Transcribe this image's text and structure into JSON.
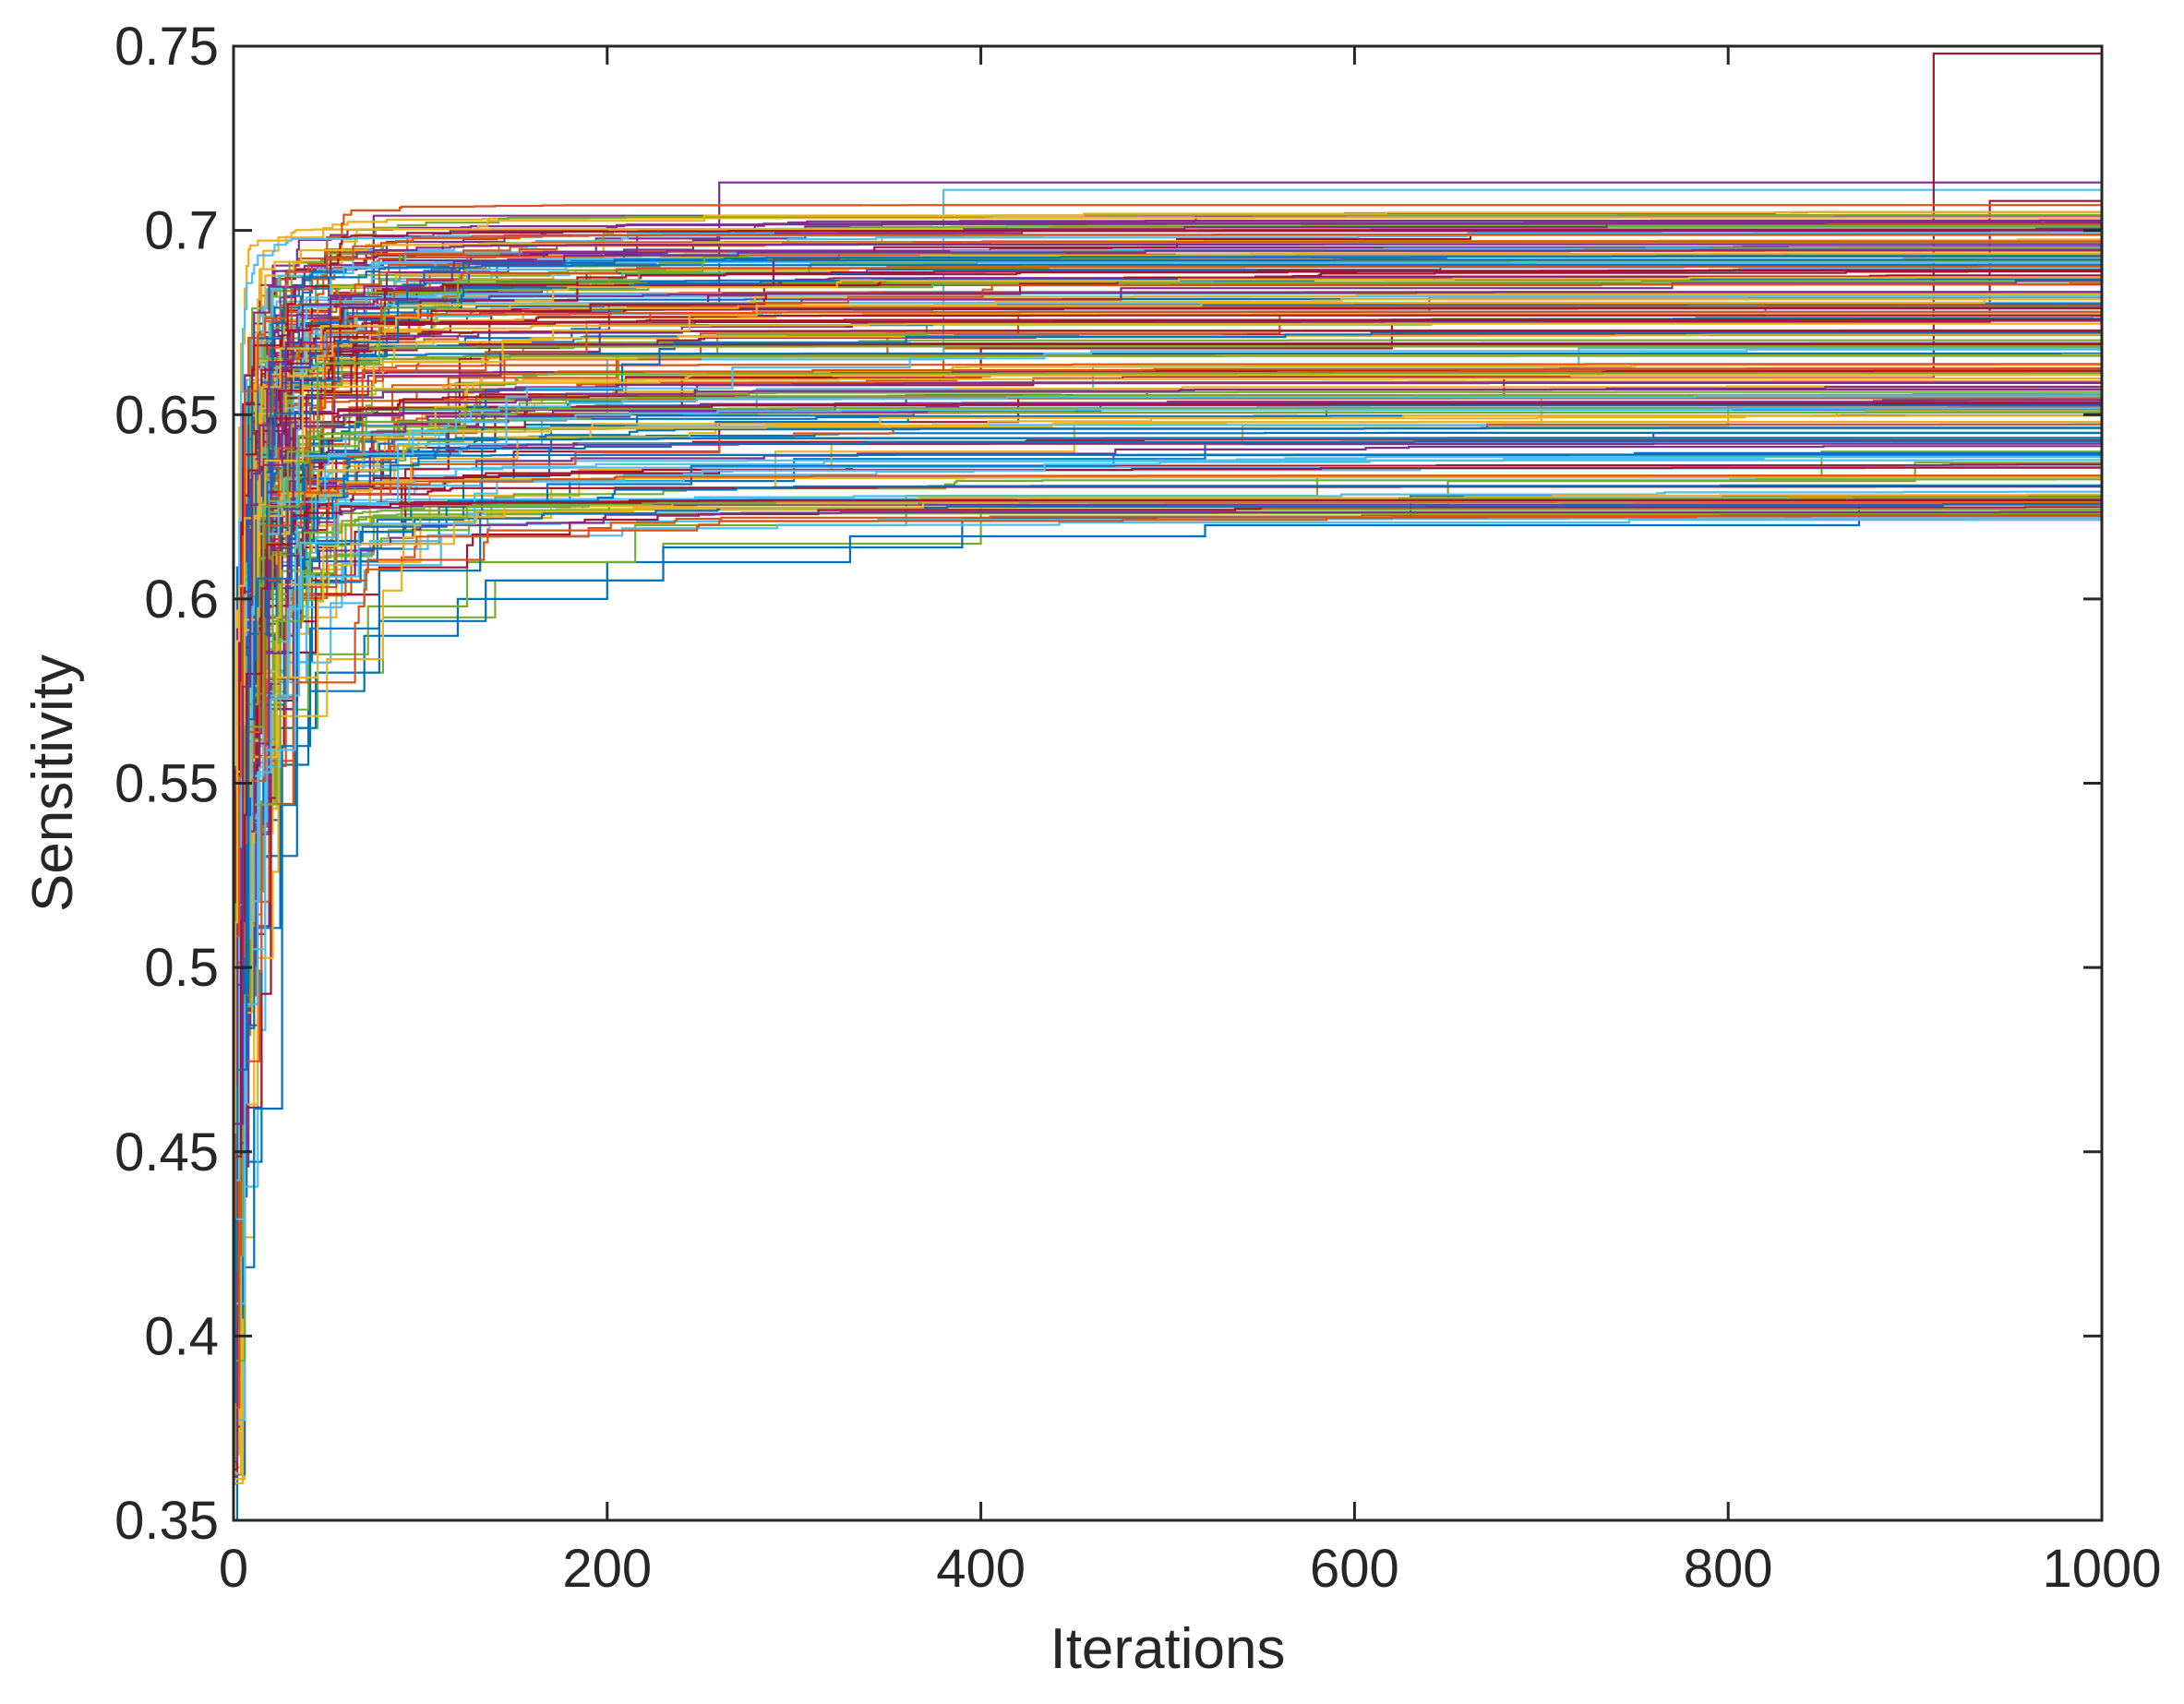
{
  "chart_data": {
    "type": "line",
    "title": "",
    "xlabel": "Iterations",
    "ylabel": "Sensitivity",
    "xlim": [
      0,
      1000
    ],
    "ylim": [
      0.35,
      0.75
    ],
    "xticks": [
      0,
      200,
      400,
      600,
      800,
      1000
    ],
    "yticks": [
      0.35,
      0.4,
      0.45,
      0.5,
      0.55,
      0.6,
      0.65,
      0.7,
      0.75
    ],
    "xtick_labels": [
      "0",
      "200",
      "400",
      "600",
      "800",
      "1000"
    ],
    "ytick_labels": [
      "0.35",
      "0.4",
      "0.45",
      "0.5",
      "0.55",
      "0.6",
      "0.65",
      "0.7",
      "0.75"
    ],
    "grid": false,
    "legend": "none",
    "box": true,
    "line_style": "stairs",
    "color_order": [
      "#0072BD",
      "#D95319",
      "#EDB120",
      "#7E2F8E",
      "#77AC30",
      "#4DBEEE",
      "#A2142F"
    ],
    "n_series_approx": 200,
    "series": [
      {
        "x": [
          0,
          2,
          5,
          9,
          14,
          22,
          35,
          60,
          110,
          180,
          300,
          520,
          760,
          1000
        ],
        "y": [
          0.36,
          0.46,
          0.52,
          0.55,
          0.57,
          0.59,
          0.605,
          0.615,
          0.625,
          0.632,
          0.638,
          0.642,
          0.645,
          0.645
        ]
      },
      {
        "x": [
          0,
          1,
          3,
          6,
          12,
          20,
          40,
          75,
          130,
          210,
          380,
          620,
          1000
        ],
        "y": [
          0.41,
          0.5,
          0.55,
          0.58,
          0.6,
          0.615,
          0.63,
          0.645,
          0.655,
          0.66,
          0.668,
          0.672,
          0.672
        ]
      },
      {
        "x": [
          0,
          2,
          4,
          10,
          18,
          30,
          55,
          100,
          170,
          290,
          450,
          700,
          1000
        ],
        "y": [
          0.38,
          0.48,
          0.53,
          0.56,
          0.58,
          0.595,
          0.61,
          0.622,
          0.63,
          0.64,
          0.648,
          0.655,
          0.655
        ]
      },
      {
        "x": [
          0,
          1,
          2,
          5,
          8,
          15,
          28,
          70,
          260,
          1000
        ],
        "y": [
          0.42,
          0.53,
          0.58,
          0.6,
          0.62,
          0.64,
          0.66,
          0.68,
          0.713,
          0.713
        ]
      },
      {
        "x": [
          0,
          3,
          7,
          13,
          25,
          45,
          80,
          140,
          230,
          400,
          650,
          900,
          1000
        ],
        "y": [
          0.37,
          0.47,
          0.52,
          0.545,
          0.565,
          0.58,
          0.595,
          0.605,
          0.615,
          0.625,
          0.632,
          0.637,
          0.637
        ]
      },
      {
        "x": [
          0,
          2,
          6,
          11,
          19,
          33,
          60,
          110,
          200,
          380,
          1000
        ],
        "y": [
          0.4,
          0.51,
          0.56,
          0.59,
          0.61,
          0.625,
          0.64,
          0.65,
          0.665,
          0.711,
          0.711
        ]
      },
      {
        "x": [
          0,
          1,
          4,
          8,
          16,
          28,
          50,
          90,
          150,
          260,
          420,
          680,
          910,
          1000
        ],
        "y": [
          0.39,
          0.49,
          0.54,
          0.57,
          0.59,
          0.605,
          0.62,
          0.632,
          0.64,
          0.648,
          0.655,
          0.66,
          0.748,
          0.748
        ]
      },
      {
        "x": [
          0,
          2,
          5,
          10,
          20,
          40,
          70,
          120,
          200,
          330,
          520,
          870,
          1000
        ],
        "y": [
          0.35,
          0.45,
          0.5,
          0.53,
          0.555,
          0.575,
          0.59,
          0.6,
          0.61,
          0.617,
          0.62,
          0.628,
          0.628
        ]
      },
      {
        "x": [
          0,
          1,
          3,
          7,
          14,
          26,
          48,
          85,
          145,
          250,
          420,
          640,
          1000
        ],
        "y": [
          0.43,
          0.52,
          0.57,
          0.6,
          0.62,
          0.635,
          0.648,
          0.658,
          0.665,
          0.672,
          0.678,
          0.682,
          0.682
        ]
      },
      {
        "x": [
          0,
          2,
          4,
          9,
          17,
          31,
          58,
          105,
          185,
          320,
          540,
          800,
          1000
        ],
        "y": [
          0.4,
          0.5,
          0.545,
          0.575,
          0.595,
          0.608,
          0.62,
          0.628,
          0.635,
          0.642,
          0.647,
          0.652,
          0.652
        ]
      },
      {
        "x": [
          0,
          1,
          2,
          5,
          10,
          18,
          35,
          75,
          160,
          300,
          1000
        ],
        "y": [
          0.44,
          0.55,
          0.6,
          0.63,
          0.65,
          0.665,
          0.68,
          0.704,
          0.704,
          0.704,
          0.704
        ]
      },
      {
        "x": [
          0,
          3,
          6,
          12,
          22,
          40,
          72,
          125,
          215,
          360,
          580,
          850,
          1000
        ],
        "y": [
          0.38,
          0.47,
          0.515,
          0.545,
          0.57,
          0.585,
          0.598,
          0.61,
          0.62,
          0.628,
          0.633,
          0.64,
          0.64
        ]
      },
      {
        "x": [
          0,
          2,
          5,
          9,
          16,
          30,
          55,
          95,
          165,
          280,
          460,
          720,
          1000
        ],
        "y": [
          0.41,
          0.505,
          0.55,
          0.58,
          0.6,
          0.618,
          0.632,
          0.642,
          0.65,
          0.657,
          0.663,
          0.668,
          0.668
        ]
      },
      {
        "x": [
          0,
          1,
          3,
          6,
          11,
          21,
          42,
          80,
          140,
          240,
          400,
          620,
          940,
          1000
        ],
        "y": [
          0.39,
          0.5,
          0.55,
          0.58,
          0.6,
          0.615,
          0.63,
          0.64,
          0.65,
          0.66,
          0.668,
          0.675,
          0.708,
          0.708
        ]
      },
      {
        "x": [
          0,
          2,
          6,
          12,
          24,
          44,
          78,
          135,
          230,
          390,
          630,
          1000
        ],
        "y": [
          0.37,
          0.46,
          0.51,
          0.54,
          0.565,
          0.58,
          0.594,
          0.605,
          0.614,
          0.622,
          0.628,
          0.628
        ]
      },
      {
        "x": [
          0,
          1,
          2,
          4,
          9,
          17,
          33,
          62,
          115,
          205,
          350,
          560,
          820,
          1000
        ],
        "y": [
          0.42,
          0.52,
          0.565,
          0.595,
          0.615,
          0.63,
          0.642,
          0.652,
          0.66,
          0.666,
          0.672,
          0.677,
          0.68,
          0.68
        ]
      }
    ]
  }
}
